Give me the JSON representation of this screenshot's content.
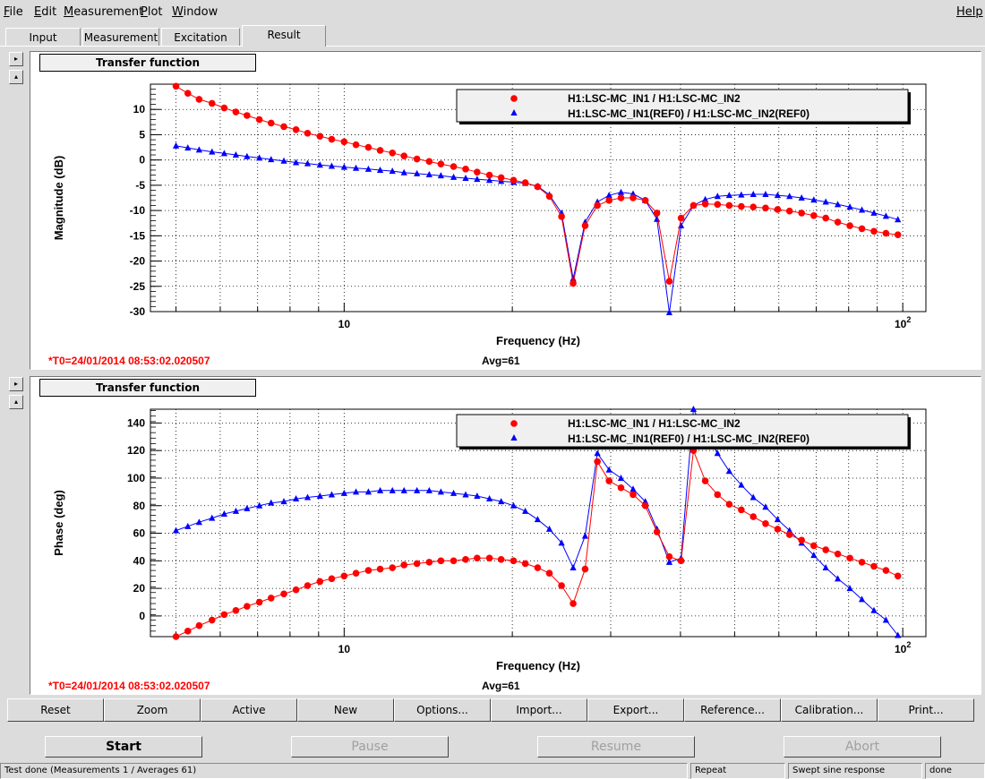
{
  "menu": {
    "items": [
      {
        "label": "File",
        "ul": "F",
        "rest": "ile"
      },
      {
        "label": "Edit",
        "ul": "E",
        "rest": "dit"
      },
      {
        "label": "Measurement",
        "ul": "M",
        "rest": "easurement"
      },
      {
        "label": "Plot",
        "ul": "P",
        "rest": "lot"
      },
      {
        "label": "Window",
        "ul": "W",
        "rest": "indow"
      }
    ],
    "help": "Help"
  },
  "tabs": [
    "Input",
    "Measurement",
    "Excitation",
    "Result"
  ],
  "active_tab": "Result",
  "panels": [
    {
      "title": "Transfer function",
      "t0": "*T0=24/01/2014 08:53:02.020507",
      "avg": "Avg=61"
    },
    {
      "title": "Transfer function",
      "t0": "*T0=24/01/2014 08:53:02.020507",
      "avg": "Avg=61"
    }
  ],
  "colors": {
    "series_current": "#ff0000",
    "series_reference": "#0000ff",
    "timestamp": "#ff0000"
  },
  "chart_data": [
    {
      "type": "scatter",
      "title": "Transfer function",
      "xlabel": "Frequency (Hz)",
      "ylabel": "Magnitude (dB)",
      "xscale": "log",
      "xlim": [
        4.5,
        110
      ],
      "ylim": [
        -30,
        15
      ],
      "yticks": [
        -30,
        -25,
        -20,
        -15,
        -10,
        -5,
        0,
        5,
        10
      ],
      "xtick_labels": [
        {
          "value": 10,
          "label": "10"
        },
        {
          "value": 100,
          "label": "10",
          "sup": "2"
        }
      ],
      "grid": true,
      "legend": "top-right",
      "x": [
        5.0,
        5.25,
        5.5,
        5.8,
        6.1,
        6.4,
        6.7,
        7.05,
        7.4,
        7.8,
        8.2,
        8.6,
        9.05,
        9.5,
        10.0,
        10.5,
        11.05,
        11.6,
        12.2,
        12.8,
        13.5,
        14.2,
        14.9,
        15.7,
        16.5,
        17.3,
        18.2,
        19.1,
        20.1,
        21.1,
        22.2,
        23.3,
        24.5,
        25.7,
        27.0,
        28.4,
        29.8,
        31.3,
        32.9,
        34.6,
        36.3,
        38.2,
        40.1,
        42.2,
        44.3,
        46.6,
        48.9,
        51.4,
        54.0,
        56.8,
        59.7,
        62.7,
        65.9,
        69.3,
        72.8,
        76.5,
        80.4,
        84.5,
        88.8,
        93.3,
        98.0
      ],
      "series": [
        {
          "name": "H1:LSC-MC_IN1 / H1:LSC-MC_IN2",
          "marker": "circle",
          "color": "#ff0000",
          "values": [
            14.6,
            13.2,
            12.0,
            11.2,
            10.3,
            9.5,
            8.8,
            8.0,
            7.3,
            6.6,
            6.0,
            5.3,
            4.7,
            4.1,
            3.6,
            3.0,
            2.5,
            1.9,
            1.4,
            0.8,
            0.2,
            -0.3,
            -0.8,
            -1.3,
            -1.8,
            -2.4,
            -3.0,
            -3.5,
            -4.0,
            -4.5,
            -5.3,
            -7.2,
            -11.2,
            -24.4,
            -13.0,
            -9.0,
            -8.0,
            -7.5,
            -7.5,
            -8.0,
            -10.5,
            -24.0,
            -11.5,
            -9.0,
            -8.7,
            -8.8,
            -9.0,
            -9.2,
            -9.3,
            -9.5,
            -9.8,
            -10.1,
            -10.5,
            -11.0,
            -11.5,
            -12.3,
            -13.0,
            -13.6,
            -14.1,
            -14.5,
            -14.8
          ]
        },
        {
          "name": "H1:LSC-MC_IN1(REF0) / H1:LSC-MC_IN2(REF0)",
          "marker": "triangle",
          "color": "#0000ff",
          "values": [
            2.8,
            2.4,
            2.0,
            1.6,
            1.3,
            1.0,
            0.7,
            0.4,
            0.1,
            -0.2,
            -0.5,
            -0.7,
            -1.0,
            -1.2,
            -1.4,
            -1.6,
            -1.8,
            -2.0,
            -2.2,
            -2.5,
            -2.7,
            -2.9,
            -3.1,
            -3.4,
            -3.6,
            -3.8,
            -4.0,
            -4.2,
            -4.4,
            -4.6,
            -5.2,
            -6.9,
            -10.5,
            -23.5,
            -12.3,
            -8.3,
            -7.0,
            -6.4,
            -6.7,
            -8.0,
            -11.7,
            -30.2,
            -13.0,
            -9.0,
            -7.8,
            -7.2,
            -7.0,
            -6.9,
            -6.8,
            -6.8,
            -7.0,
            -7.2,
            -7.5,
            -7.9,
            -8.3,
            -8.8,
            -9.3,
            -9.9,
            -10.5,
            -11.1,
            -11.8
          ]
        }
      ]
    },
    {
      "type": "scatter",
      "title": "Transfer function",
      "xlabel": "Frequency (Hz)",
      "ylabel": "Phase (deg)",
      "xscale": "log",
      "xlim": [
        4.5,
        110
      ],
      "ylim": [
        -15,
        150
      ],
      "yticks": [
        0,
        20,
        40,
        60,
        80,
        100,
        120,
        140
      ],
      "xtick_labels": [
        {
          "value": 10,
          "label": "10"
        },
        {
          "value": 100,
          "label": "10",
          "sup": "2"
        }
      ],
      "grid": true,
      "legend": "top-right",
      "x": [
        5.0,
        5.25,
        5.5,
        5.8,
        6.1,
        6.4,
        6.7,
        7.05,
        7.4,
        7.8,
        8.2,
        8.6,
        9.05,
        9.5,
        10.0,
        10.5,
        11.05,
        11.6,
        12.2,
        12.8,
        13.5,
        14.2,
        14.9,
        15.7,
        16.5,
        17.3,
        18.2,
        19.1,
        20.1,
        21.1,
        22.2,
        23.3,
        24.5,
        25.7,
        27.0,
        28.4,
        29.8,
        31.3,
        32.9,
        34.6,
        36.3,
        38.2,
        40.1,
        42.2,
        44.3,
        46.6,
        48.9,
        51.4,
        54.0,
        56.8,
        59.7,
        62.7,
        65.9,
        69.3,
        72.8,
        76.5,
        80.4,
        84.5,
        88.8,
        93.3,
        98.0
      ],
      "series": [
        {
          "name": "H1:LSC-MC_IN1 / H1:LSC-MC_IN2",
          "marker": "circle",
          "color": "#ff0000",
          "values": [
            -15,
            -11,
            -7,
            -3,
            1,
            4,
            7,
            10,
            13,
            16,
            19,
            22,
            25,
            27,
            29,
            31,
            33,
            34,
            35,
            37,
            38,
            39,
            40,
            40,
            41,
            42,
            42,
            41,
            40,
            38,
            35,
            31,
            22,
            9,
            34,
            112,
            98,
            93,
            88,
            80,
            61,
            43,
            40,
            120,
            98,
            88,
            81,
            77,
            72,
            67,
            63,
            59,
            55,
            51,
            48,
            45,
            42,
            39,
            36,
            33,
            29
          ]
        },
        {
          "name": "H1:LSC-MC_IN1(REF0) / H1:LSC-MC_IN2(REF0)",
          "marker": "triangle",
          "color": "#0000ff",
          "values": [
            62,
            65,
            68,
            71,
            74,
            76,
            78,
            80,
            82,
            83,
            85,
            86,
            87,
            88,
            89,
            90,
            90,
            91,
            91,
            91,
            91,
            91,
            90,
            89,
            88,
            87,
            85,
            83,
            80,
            76,
            70,
            63,
            53,
            35,
            58,
            118,
            106,
            100,
            92,
            83,
            63,
            39,
            42,
            150,
            133,
            118,
            105,
            95,
            86,
            79,
            70,
            62,
            53,
            44,
            35,
            27,
            20,
            12,
            4,
            -3,
            -14
          ]
        }
      ]
    }
  ],
  "buttons": [
    "Reset",
    "Zoom",
    "Active",
    "New",
    "Options...",
    "Import...",
    "Export...",
    "Reference...",
    "Calibration...",
    "Print..."
  ],
  "control": {
    "start": "Start",
    "pause": "Pause",
    "resume": "Resume",
    "abort": "Abort"
  },
  "status": {
    "main": "Test done (Measurements 1 / Averages 61)",
    "mode": "Repeat",
    "type": "Swept sine response",
    "state": "done"
  }
}
